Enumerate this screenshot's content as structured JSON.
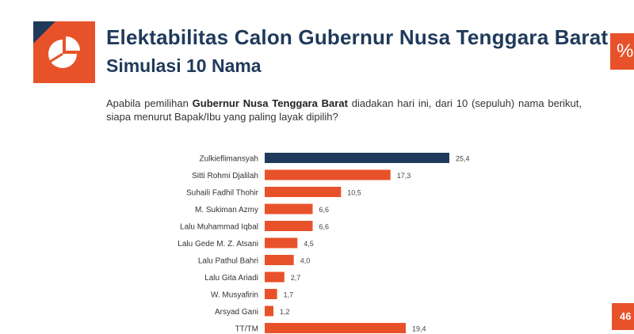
{
  "header": {
    "title": "Elektabilitas Calon Gubernur Nusa Tenggara Barat",
    "subtitle": "Simulasi 10 Nama",
    "logo_icon": "pie-chart-icon",
    "edge_badge": "%"
  },
  "question": {
    "prefix": "Apabila pemilihan ",
    "bold": "Gubernur Nusa Tenggara Barat",
    "suffix": " diadakan hari ini, dari 10 (sepuluh) nama berikut, siapa menurut Bapak/Ibu yang paling layak dipilih?"
  },
  "page_number": "46",
  "colors": {
    "accent": "#e8522a",
    "navy": "#1f3a5a",
    "highlight_bar": "#1f3a5a",
    "bar": "#e8522a"
  },
  "chart_data": {
    "type": "bar",
    "orientation": "horizontal",
    "categories": [
      "Zulkieflimansyah",
      "Sitti Rohmi Djalilah",
      "Suhaili Fadhil Thohir",
      "M. Sukiman Azmy",
      "Lalu Muhammad Iqbal",
      "Lalu Gede M. Z. Atsani",
      "Lalu Pathul Bahri",
      "Lalu Gita Ariadi",
      "W. Musyafirin",
      "Arsyad Gani",
      "TT/TM"
    ],
    "values": [
      25.4,
      17.3,
      10.5,
      6.6,
      6.6,
      4.5,
      4.0,
      2.7,
      1.7,
      1.2,
      19.4
    ],
    "value_labels": [
      "25,4",
      "17,3",
      "10,5",
      "6,6",
      "6,6",
      "4,5",
      "4,0",
      "2,7",
      "1,7",
      "1,2",
      "19,4"
    ],
    "highlight_index": 0,
    "title": "",
    "xlabel": "",
    "ylabel": "",
    "grid": false,
    "legend": "none"
  }
}
